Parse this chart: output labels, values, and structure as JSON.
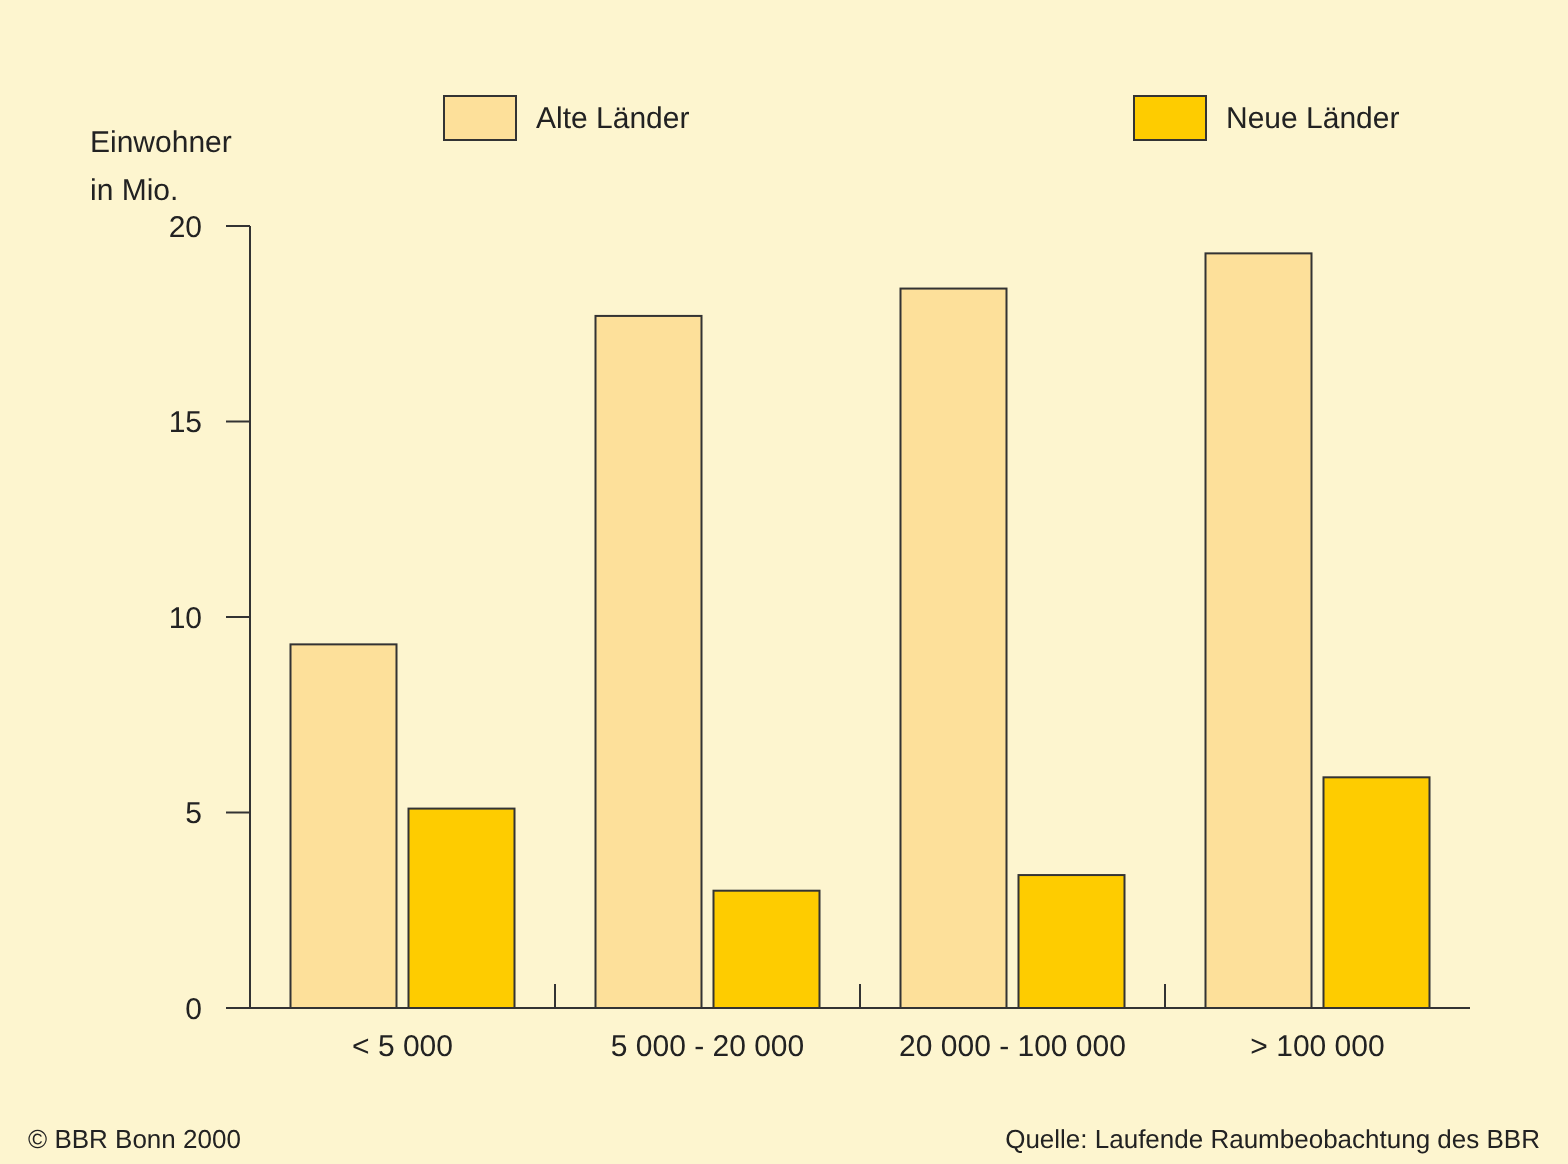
{
  "chart_data": {
    "type": "bar",
    "ylabel": "Einwohner\nin Mio.",
    "categories": [
      "< 5 000",
      "5 000 - 20 000",
      "20 000 - 100 000",
      "> 100 000"
    ],
    "series": [
      {
        "name": "Alte Länder",
        "color": "#fde09a",
        "values": [
          9.3,
          17.7,
          18.4,
          19.3
        ]
      },
      {
        "name": "Neue Länder",
        "color": "#fecc00",
        "values": [
          5.1,
          3.0,
          3.4,
          5.9
        ]
      }
    ],
    "ylim": [
      0,
      20
    ],
    "yticks": [
      0,
      5,
      10,
      15,
      20
    ],
    "grid": false,
    "legend": "top",
    "annotations": [
      "© BBR Bonn 2000",
      "Quelle: Laufende  Raumbeobachtung des BBR"
    ]
  }
}
